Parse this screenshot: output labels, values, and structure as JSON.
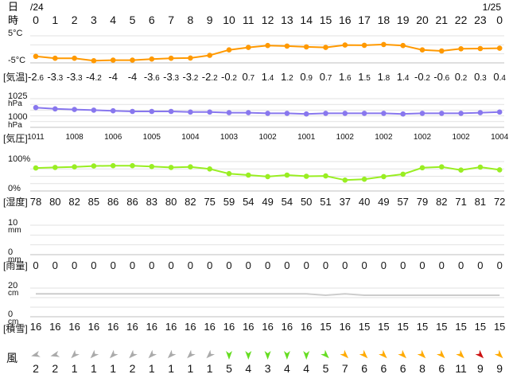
{
  "header": {
    "day_label": "日",
    "hour_label": "時",
    "date_start": "/24",
    "date_end": "1/25"
  },
  "chart_data": [
    {
      "type": "line",
      "x": [
        0,
        1,
        2,
        3,
        4,
        5,
        6,
        7,
        8,
        9,
        10,
        11,
        12,
        13,
        14,
        15,
        16,
        17,
        18,
        19,
        20,
        21,
        22,
        23,
        0
      ],
      "series": [
        {
          "name": "気温",
          "values": [
            -2.6,
            -3.3,
            -3.3,
            -4.2,
            -4,
            -4,
            -3.6,
            -3.3,
            -3.2,
            -2.2,
            -0.2,
            0.7,
            1.4,
            1.2,
            0.9,
            0.7,
            1.6,
            1.5,
            1.8,
            1.4,
            -0.2,
            -0.6,
            0.2,
            0.3,
            0.4
          ]
        }
      ],
      "y_tick_labels": [
        "5°C",
        "-5°C"
      ],
      "ylim": [
        -5,
        5
      ],
      "row_label": "[気温]",
      "value_labels": [
        "-2.6",
        "-3.3",
        "-3.3",
        "-4.2",
        "-4",
        "-4",
        "-3.6",
        "-3.3",
        "-3.2",
        "-2.2",
        "-0.2",
        "0.7",
        "1.4",
        "1.2",
        "0.9",
        "0.7",
        "1.6",
        "1.5",
        "1.8",
        "1.4",
        "-0.2",
        "-0.6",
        "0.2",
        "0.3",
        "0.4"
      ],
      "color": "#ff9900",
      "grid": true
    },
    {
      "type": "line",
      "x": [
        0,
        1,
        2,
        3,
        4,
        5,
        6,
        7,
        8,
        9,
        10,
        11,
        12,
        13,
        14,
        15,
        16,
        17,
        18,
        19,
        20,
        21,
        22,
        23,
        0
      ],
      "series": [
        {
          "name": "気圧",
          "values": [
            1011,
            1009,
            1008,
            1007,
            1006,
            1005,
            1005,
            1005,
            1004,
            1004,
            1003,
            1003,
            1002,
            1002,
            1001,
            1002,
            1002,
            1002,
            1002,
            1001,
            1002,
            1002,
            1002,
            1003,
            1004
          ]
        }
      ],
      "y_tick_labels": [
        "1025",
        "hPa",
        "1000",
        "hPa"
      ],
      "ylim": [
        980,
        1025
      ],
      "row_label": "[気圧]",
      "value_labels": [
        "1011",
        "",
        "1008",
        "",
        "1006",
        "",
        "1005",
        "",
        "1004",
        "",
        "1003",
        "",
        "1002",
        "",
        "1001",
        "",
        "1002",
        "",
        "1002",
        "",
        "1002",
        "",
        "1002",
        "",
        "1004"
      ],
      "color": "#8877ee",
      "grid": true
    },
    {
      "type": "line",
      "x": [
        0,
        1,
        2,
        3,
        4,
        5,
        6,
        7,
        8,
        9,
        10,
        11,
        12,
        13,
        14,
        15,
        16,
        17,
        18,
        19,
        20,
        21,
        22,
        23,
        0
      ],
      "series": [
        {
          "name": "湿度",
          "values": [
            78,
            80,
            82,
            85,
            86,
            86,
            83,
            80,
            82,
            75,
            59,
            54,
            49,
            54,
            50,
            51,
            37,
            40,
            49,
            57,
            79,
            82,
            71,
            81,
            72
          ]
        }
      ],
      "y_tick_labels": [
        "100%",
        "0%"
      ],
      "ylim": [
        0,
        100
      ],
      "row_label": "[湿度]",
      "value_labels": [
        "78",
        "80",
        "82",
        "85",
        "86",
        "86",
        "83",
        "80",
        "82",
        "75",
        "59",
        "54",
        "49",
        "54",
        "50",
        "51",
        "37",
        "40",
        "49",
        "57",
        "79",
        "82",
        "71",
        "81",
        "72"
      ],
      "color": "#99ee22",
      "grid": true
    },
    {
      "type": "bar",
      "x": [
        0,
        1,
        2,
        3,
        4,
        5,
        6,
        7,
        8,
        9,
        10,
        11,
        12,
        13,
        14,
        15,
        16,
        17,
        18,
        19,
        20,
        21,
        22,
        23,
        0
      ],
      "series": [
        {
          "name": "雨量",
          "values": [
            0,
            0,
            0,
            0,
            0,
            0,
            0,
            0,
            0,
            0,
            0,
            0,
            0,
            0,
            0,
            0,
            0,
            0,
            0,
            0,
            0,
            0,
            0,
            0,
            0
          ]
        }
      ],
      "y_tick_labels": [
        "10",
        "mm",
        "0",
        "mm"
      ],
      "ylim": [
        0,
        10
      ],
      "row_label": "[雨量]",
      "value_labels": [
        "0",
        "0",
        "0",
        "0",
        "0",
        "0",
        "0",
        "0",
        "0",
        "0",
        "0",
        "0",
        "0",
        "0",
        "0",
        "0",
        "0",
        "0",
        "0",
        "0",
        "0",
        "0",
        "0",
        "0",
        "0"
      ],
      "color": "#3399ff",
      "grid": true
    },
    {
      "type": "area",
      "x": [
        0,
        1,
        2,
        3,
        4,
        5,
        6,
        7,
        8,
        9,
        10,
        11,
        12,
        13,
        14,
        15,
        16,
        17,
        18,
        19,
        20,
        21,
        22,
        23,
        0
      ],
      "series": [
        {
          "name": "積雪",
          "values": [
            16,
            16,
            16,
            16,
            16,
            16,
            16,
            16,
            16,
            16,
            16,
            16,
            16,
            16,
            16,
            15,
            16,
            15,
            15,
            15,
            15,
            15,
            15,
            15,
            15
          ]
        }
      ],
      "y_tick_labels": [
        "20",
        "cm",
        "0",
        "cm"
      ],
      "ylim": [
        0,
        20
      ],
      "row_label": "[積雪]",
      "value_labels": [
        "16",
        "16",
        "16",
        "16",
        "16",
        "16",
        "16",
        "16",
        "16",
        "16",
        "16",
        "16",
        "16",
        "16",
        "16",
        "15",
        "16",
        "15",
        "15",
        "15",
        "15",
        "15",
        "15",
        "15",
        "15"
      ],
      "color": "#cccccc",
      "grid": true
    },
    {
      "type": "table",
      "row_label": "風",
      "x": [
        0,
        1,
        2,
        3,
        4,
        5,
        6,
        7,
        8,
        9,
        10,
        11,
        12,
        13,
        14,
        15,
        16,
        17,
        18,
        19,
        20,
        21,
        22,
        23,
        0
      ],
      "wind_speed": [
        2,
        2,
        1,
        1,
        1,
        2,
        1,
        1,
        1,
        1,
        5,
        4,
        3,
        4,
        4,
        5,
        7,
        6,
        6,
        6,
        8,
        6,
        11,
        9,
        9
      ],
      "wind_labels": [
        "2",
        "2",
        "1",
        "1",
        "1",
        "2",
        "1",
        "1",
        "1",
        "1",
        "5",
        "4",
        "3",
        "4",
        "4",
        "5",
        "7",
        "6",
        "6",
        "6",
        "8",
        "6",
        "11",
        "9",
        "9"
      ],
      "wind_direction_deg": [
        75,
        75,
        45,
        45,
        45,
        45,
        45,
        45,
        45,
        45,
        0,
        0,
        0,
        0,
        0,
        315,
        315,
        315,
        315,
        315,
        315,
        315,
        315,
        315,
        315
      ],
      "wind_colors": [
        "#aaaaaa",
        "#aaaaaa",
        "#aaaaaa",
        "#aaaaaa",
        "#aaaaaa",
        "#aaaaaa",
        "#aaaaaa",
        "#aaaaaa",
        "#aaaaaa",
        "#aaaaaa",
        "#66dd22",
        "#66dd22",
        "#66dd22",
        "#66dd22",
        "#66dd22",
        "#66dd22",
        "#ffaa00",
        "#ffaa00",
        "#ffaa00",
        "#ffaa00",
        "#ffaa00",
        "#ffaa00",
        "#ffaa00",
        "#cc1111",
        "#ffaa00"
      ]
    }
  ]
}
